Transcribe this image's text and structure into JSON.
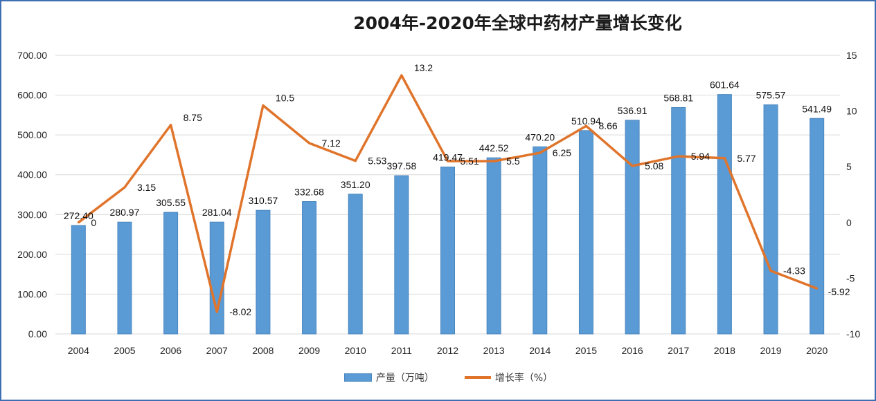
{
  "chart_data": {
    "type": "bar+line",
    "title": "2004年-2020年全球中药材产量增长变化",
    "categories": [
      "2004",
      "2005",
      "2006",
      "2007",
      "2008",
      "2009",
      "2010",
      "2011",
      "2012",
      "2013",
      "2014",
      "2015",
      "2016",
      "2017",
      "2018",
      "2019",
      "2020"
    ],
    "series": [
      {
        "name": "产量（万吨）",
        "type": "bar",
        "axis": "left",
        "color": "#5b9bd5",
        "values": [
          272.4,
          280.97,
          305.55,
          281.04,
          310.57,
          332.68,
          351.2,
          397.58,
          419.47,
          442.52,
          470.2,
          510.94,
          536.91,
          568.81,
          601.64,
          575.57,
          541.49
        ],
        "labels": [
          "272.40",
          "280.97",
          "305.55",
          "281.04",
          "310.57",
          "332.68",
          "351.20",
          "397.58",
          "419.47",
          "442.52",
          "470.20",
          "510.94",
          "536.91",
          "568.81",
          "601.64",
          "575.57",
          "541.49"
        ]
      },
      {
        "name": "增长率（%）",
        "type": "line",
        "axis": "right",
        "color": "#e0742b",
        "values": [
          0,
          3.15,
          8.75,
          -8.02,
          10.5,
          7.12,
          5.53,
          13.2,
          5.51,
          5.5,
          6.25,
          8.66,
          5.08,
          5.94,
          5.77,
          -4.33,
          -5.92
        ],
        "labels": [
          "0",
          "3.15",
          "8.75",
          "-8.02",
          "10.5",
          "7.12",
          "5.53",
          "13.2",
          "5.51",
          "5.5",
          "6.25",
          "8.66",
          "5.08",
          "5.94",
          "5.77",
          "-4.33",
          "-5.92"
        ]
      }
    ],
    "y_left": {
      "range": [
        0,
        700
      ],
      "ticks": [
        "0.00",
        "100.00",
        "200.00",
        "300.00",
        "400.00",
        "500.00",
        "600.00",
        "700.00"
      ]
    },
    "y_right": {
      "range": [
        -10,
        15
      ],
      "ticks": [
        "-10",
        "-5",
        "0",
        "5",
        "10",
        "15"
      ]
    },
    "grid": true,
    "legend_position": "bottom"
  }
}
